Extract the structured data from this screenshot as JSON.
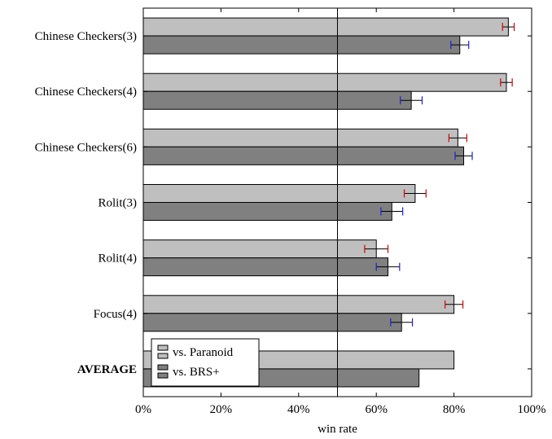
{
  "chart_data": {
    "type": "bar",
    "orientation": "horizontal",
    "categories": [
      "Chinese Checkers(3)",
      "Chinese Checkers(4)",
      "Chinese Checkers(6)",
      "Rolit(3)",
      "Rolit(4)",
      "Focus(4)",
      "AVERAGE"
    ],
    "series": [
      {
        "name": "vs. Paranoid",
        "color": "#bfbfbf",
        "values": [
          94,
          93.5,
          81,
          70,
          60,
          80,
          80
        ],
        "error": [
          1.5,
          1.5,
          2.3,
          2.8,
          3.0,
          2.3,
          null
        ],
        "error_color": "#d40000"
      },
      {
        "name": "vs. BRS+",
        "color": "#808080",
        "values": [
          81.5,
          69,
          82.5,
          64,
          63,
          66.5,
          71
        ],
        "error": [
          2.3,
          2.8,
          2.2,
          2.8,
          3.0,
          2.8,
          null
        ],
        "error_color": "#1f1fd0"
      }
    ],
    "xlabel": "win rate",
    "ylabel": "",
    "xlim": [
      0,
      100
    ],
    "xticks": [
      0,
      20,
      40,
      60,
      80,
      100
    ],
    "xtick_labels": [
      "0%",
      "20%",
      "40%",
      "60%",
      "80%",
      "100%"
    ],
    "reference_line": 50,
    "bold_categories": [
      "AVERAGE"
    ],
    "legend_position": "bottom-left",
    "grid": false
  }
}
